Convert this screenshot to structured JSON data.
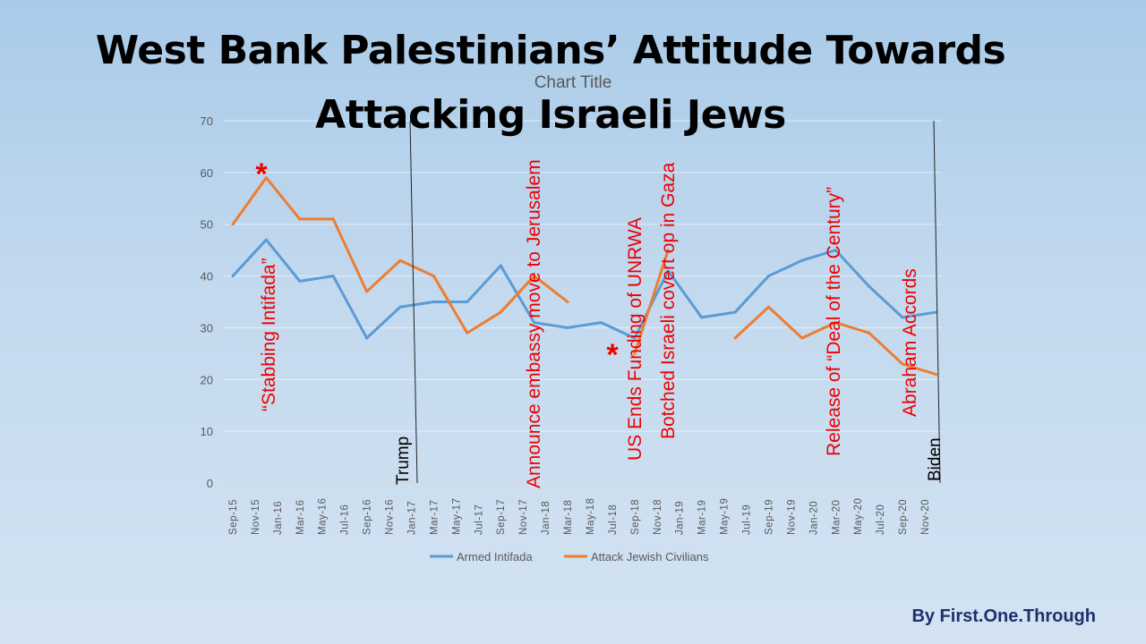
{
  "slide": {
    "title_line1": "West Bank Palestinians’ Attitude Towards",
    "title_line2": "Attacking Israeli Jews",
    "credit": "By First.One.Through"
  },
  "chart_data": {
    "type": "line",
    "title": "Chart Title",
    "xlabel": "",
    "ylabel": "",
    "ylim": [
      0,
      70
    ],
    "yticks": [
      0,
      10,
      20,
      30,
      40,
      50,
      60,
      70
    ],
    "grid": true,
    "legend_position": "bottom",
    "x_tick_labels": [
      "Sep-15",
      "Nov-15",
      "Jan-16",
      "Mar-16",
      "May-16",
      "Jul-16",
      "Sep-16",
      "Nov-16",
      "Jan-17",
      "Mar-17",
      "May-17",
      "Jul-17",
      "Sep-17",
      "Nov-17",
      "Jan-18",
      "Mar-18",
      "May-18",
      "Jul-18",
      "Sep-18",
      "Nov-18",
      "Jan-19",
      "Mar-19",
      "May-19",
      "Jul-19",
      "Sep-19",
      "Nov-19",
      "Jan-20",
      "Mar-20",
      "May-20",
      "Jul-20",
      "Sep-20",
      "Nov-20"
    ],
    "x": [
      "Sep-15",
      "Dec-15",
      "Mar-16",
      "Jun-16",
      "Sep-16",
      "Dec-16",
      "Mar-17",
      "Jun-17",
      "Sep-17",
      "Dec-17",
      "Mar-18",
      "Jun-18",
      "Sep-18",
      "Dec-18",
      "Mar-19",
      "Jun-19",
      "Sep-19",
      "Dec-19",
      "Mar-20",
      "Jun-20",
      "Sep-20",
      "Dec-20"
    ],
    "series": [
      {
        "name": "Armed Intifada",
        "color": "#5b9bd5",
        "values": [
          40,
          47,
          39,
          40,
          28,
          34,
          35,
          35,
          42,
          31,
          30,
          31,
          28,
          41,
          32,
          33,
          40,
          43,
          45,
          38,
          32,
          33
        ]
      },
      {
        "name": "Attack Jewish Civilians",
        "color": "#ed7d31",
        "values": [
          50,
          59,
          51,
          51,
          37,
          43,
          40,
          29,
          33,
          40,
          35,
          null,
          25,
          45,
          null,
          28,
          34,
          28,
          31,
          29,
          23,
          21
        ]
      }
    ],
    "annotations": [
      {
        "text": "“Stabbing Intifada”",
        "color": "#ee0000"
      },
      {
        "text": "Announce embassy move to Jerusalem",
        "color": "#ee0000"
      },
      {
        "text": "US Ends Funding of UNRWA",
        "color": "#ee0000"
      },
      {
        "text": "Botched Israeli covert op in Gaza",
        "color": "#ee0000"
      },
      {
        "text": "Release of “Deal of the Century”",
        "color": "#ee0000"
      },
      {
        "text": "Abraham Accords",
        "color": "#ee0000"
      },
      {
        "text": "Trump",
        "color": "#000000"
      },
      {
        "text": "Biden",
        "color": "#000000"
      }
    ],
    "markers": [
      "*",
      "*"
    ]
  }
}
